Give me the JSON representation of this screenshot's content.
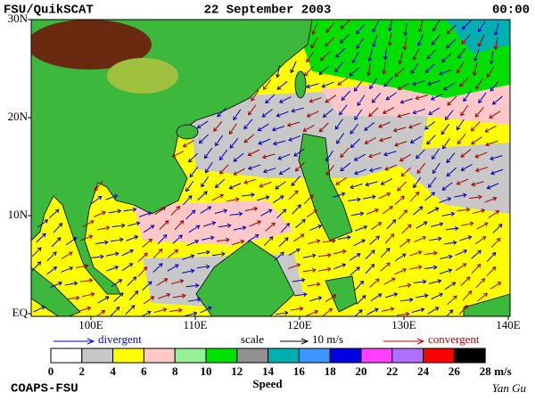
{
  "header": {
    "left": "FSU/QuikSCAT",
    "center": "22 September 2003",
    "right": "00:00"
  },
  "map": {
    "lat_labels": [
      "30N",
      "20N",
      "10N",
      "EQ"
    ],
    "lon_labels": [
      "100E",
      "110E",
      "120E",
      "130E",
      "140E"
    ]
  },
  "legend": {
    "divergent": "divergent",
    "scale": "scale",
    "scale_value": "10 m/s",
    "convergent": "convergent"
  },
  "colorbar": {
    "labels": [
      0,
      2,
      4,
      6,
      8,
      10,
      12,
      14,
      16,
      18,
      20,
      22,
      24,
      26,
      28
    ],
    "unit": "m/s",
    "title": "Speed",
    "colors": [
      "#ffffff",
      "#c8c8c8",
      "#ffff00",
      "#ffc8c8",
      "#96f096",
      "#00e000",
      "#909090",
      "#00b0b0",
      "#3c96ff",
      "#0000e0",
      "#ff40ff",
      "#b070ff",
      "#ff0000",
      "#000000"
    ]
  },
  "footer": {
    "left": "COAPS-FSU",
    "right": "Yan Gu"
  }
}
